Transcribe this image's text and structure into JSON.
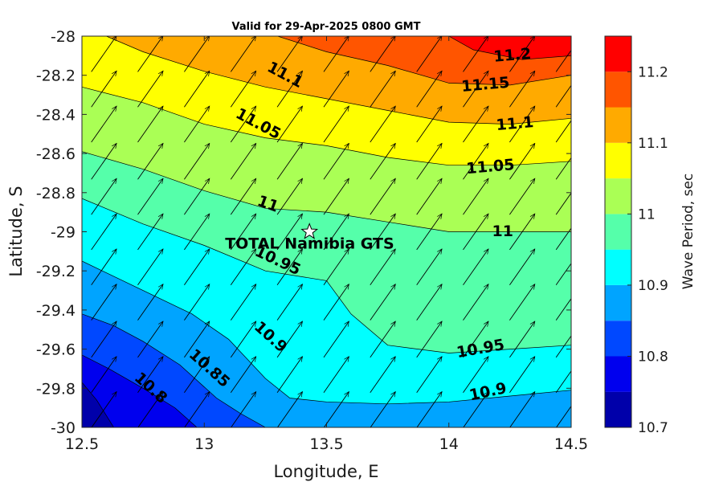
{
  "chart_data": {
    "type": "contour",
    "title": "Valid for 29-Apr-2025 0800 GMT",
    "xlabel": "Longitude, E",
    "ylabel": "Latitude, S",
    "xlim": [
      12.5,
      14.5
    ],
    "ylim": [
      -30,
      -28
    ],
    "xticks": [
      "12.5",
      "13",
      "13.5",
      "14",
      "14.5"
    ],
    "yticks": [
      "-28",
      "-28.2",
      "-28.4",
      "-28.6",
      "-28.8",
      "-29",
      "-29.2",
      "-29.4",
      "-29.6",
      "-29.8",
      "-30"
    ],
    "colorbar": {
      "label": "Wave Period, sec",
      "range": [
        10.7,
        11.25
      ],
      "ticks": [
        "10.7",
        "10.8",
        "10.9",
        "11",
        "11.1",
        "11.2"
      ],
      "levels": [
        10.7,
        10.75,
        10.8,
        10.85,
        10.9,
        10.95,
        11.0,
        11.05,
        11.1,
        11.15,
        11.2,
        11.25
      ],
      "colors": [
        "#0000aa",
        "#0000ee",
        "#0048ff",
        "#00a4ff",
        "#00ffff",
        "#55ffaa",
        "#aaff55",
        "#ffff00",
        "#ffaa00",
        "#ff5500",
        "#ff0000"
      ]
    },
    "contours": [
      {
        "level": 10.75,
        "points": [
          [
            12.5,
            -29.77
          ],
          [
            12.56,
            -29.86
          ],
          [
            12.63,
            -30.0
          ]
        ]
      },
      {
        "level": 10.8,
        "points": [
          [
            12.5,
            -29.63
          ],
          [
            12.61,
            -29.7
          ],
          [
            12.75,
            -29.8
          ],
          [
            12.88,
            -29.9
          ],
          [
            12.97,
            -30.0
          ]
        ]
      },
      {
        "level": 10.85,
        "points": [
          [
            12.5,
            -29.42
          ],
          [
            12.63,
            -29.48
          ],
          [
            12.75,
            -29.56
          ],
          [
            12.9,
            -29.68
          ],
          [
            13.05,
            -29.85
          ],
          [
            13.15,
            -29.93
          ],
          [
            13.25,
            -30.0
          ]
        ]
      },
      {
        "level": 10.9,
        "points": [
          [
            12.5,
            -29.15
          ],
          [
            12.75,
            -29.3
          ],
          [
            12.95,
            -29.42
          ],
          [
            13.1,
            -29.55
          ],
          [
            13.25,
            -29.75
          ],
          [
            13.35,
            -29.85
          ],
          [
            13.5,
            -29.87
          ],
          [
            13.75,
            -29.88
          ],
          [
            14.0,
            -29.87
          ],
          [
            14.25,
            -29.84
          ],
          [
            14.5,
            -29.81
          ]
        ]
      },
      {
        "level": 10.95,
        "points": [
          [
            12.5,
            -28.83
          ],
          [
            12.75,
            -28.96
          ],
          [
            13.0,
            -29.07
          ],
          [
            13.25,
            -29.2
          ],
          [
            13.5,
            -29.25
          ],
          [
            13.6,
            -29.42
          ],
          [
            13.75,
            -29.58
          ],
          [
            14.0,
            -29.62
          ],
          [
            14.25,
            -29.6
          ],
          [
            14.5,
            -29.58
          ]
        ]
      },
      {
        "level": 11.0,
        "points": [
          [
            12.5,
            -28.59
          ],
          [
            12.75,
            -28.68
          ],
          [
            13.0,
            -28.79
          ],
          [
            13.25,
            -28.88
          ],
          [
            13.5,
            -28.9
          ],
          [
            13.75,
            -28.95
          ],
          [
            14.0,
            -29.0
          ],
          [
            14.25,
            -29.0
          ],
          [
            14.5,
            -29.0
          ]
        ]
      },
      {
        "level": 11.05,
        "points": [
          [
            12.5,
            -28.26
          ],
          [
            12.75,
            -28.34
          ],
          [
            13.0,
            -28.45
          ],
          [
            13.25,
            -28.52
          ],
          [
            13.5,
            -28.56
          ],
          [
            13.75,
            -28.62
          ],
          [
            14.0,
            -28.66
          ],
          [
            14.25,
            -28.66
          ],
          [
            14.5,
            -28.64
          ]
        ]
      },
      {
        "level": 11.1,
        "points": [
          [
            12.6,
            -28.0
          ],
          [
            12.75,
            -28.08
          ],
          [
            13.0,
            -28.18
          ],
          [
            13.25,
            -28.26
          ],
          [
            13.5,
            -28.32
          ],
          [
            13.75,
            -28.38
          ],
          [
            14.0,
            -28.44
          ],
          [
            14.25,
            -28.45
          ],
          [
            14.5,
            -28.42
          ]
        ]
      },
      {
        "level": 11.15,
        "points": [
          [
            13.3,
            -28.0
          ],
          [
            13.5,
            -28.08
          ],
          [
            13.75,
            -28.15
          ],
          [
            14.0,
            -28.24
          ],
          [
            14.25,
            -28.25
          ],
          [
            14.5,
            -28.2
          ]
        ]
      },
      {
        "level": 11.2,
        "points": [
          [
            14.0,
            -28.0
          ],
          [
            14.1,
            -28.07
          ],
          [
            14.3,
            -28.12
          ],
          [
            14.5,
            -28.1
          ]
        ]
      }
    ],
    "contour_labels": [
      {
        "text": "10.8",
        "x": 12.78,
        "y": -29.8,
        "angle": 42
      },
      {
        "text": "10.85",
        "x": 13.02,
        "y": -29.7,
        "angle": 42
      },
      {
        "text": "10.9",
        "x": 13.27,
        "y": -29.54,
        "angle": 42
      },
      {
        "text": "10.9",
        "x": 14.16,
        "y": -29.82,
        "angle": -12
      },
      {
        "text": "10.95",
        "x": 13.3,
        "y": -29.15,
        "angle": 25
      },
      {
        "text": "10.95",
        "x": 14.13,
        "y": -29.6,
        "angle": -10
      },
      {
        "text": "11",
        "x": 13.26,
        "y": -28.86,
        "angle": 20
      },
      {
        "text": "11",
        "x": 14.22,
        "y": -29.0,
        "angle": 0
      },
      {
        "text": "11.05",
        "x": 13.22,
        "y": -28.45,
        "angle": 28
      },
      {
        "text": "11.05",
        "x": 14.17,
        "y": -28.67,
        "angle": -5
      },
      {
        "text": "11.1",
        "x": 13.33,
        "y": -28.2,
        "angle": 28
      },
      {
        "text": "11.1",
        "x": 14.27,
        "y": -28.45,
        "angle": -5
      },
      {
        "text": "11.15",
        "x": 14.15,
        "y": -28.25,
        "angle": -5
      },
      {
        "text": "11.2",
        "x": 14.26,
        "y": -28.1,
        "angle": -5
      }
    ],
    "vectors": {
      "x": [
        12.59,
        12.78,
        12.97,
        13.16,
        13.35,
        13.54,
        13.73,
        13.92,
        14.11,
        14.3,
        14.49
      ],
      "y": [
        -28.09,
        -28.27,
        -28.45,
        -28.64,
        -28.82,
        -29.0,
        -29.18,
        -29.36,
        -29.55,
        -29.73,
        -29.91
      ],
      "direction_deg": 55,
      "length_deg": 0.18
    },
    "site": {
      "name": "TOTAL Namibia GTS",
      "x": 13.43,
      "y": -29.0
    }
  }
}
